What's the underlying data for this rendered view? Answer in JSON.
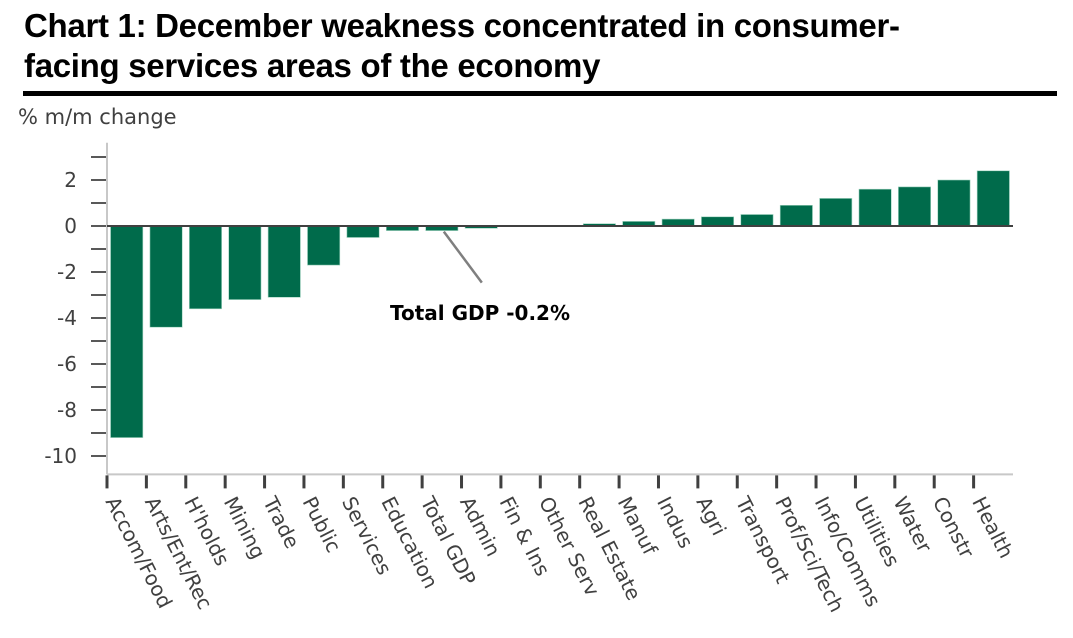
{
  "title": "Chart 1: December weakness concentrated in consumer-facing services areas of the economy",
  "title_lines": [
    "Chart 1: December weakness concentrated in consumer-",
    "facing services areas of the economy"
  ],
  "colors": {
    "bar": "#006B4B",
    "zero_line": "#404040",
    "axis": "#C8C8C8",
    "tick": "#595959",
    "text": "#404040"
  },
  "chart_data": {
    "type": "bar",
    "title": "Chart 1: December weakness concentrated in consumer-facing services areas of the economy",
    "xlabel": "",
    "ylabel": "% m/m change",
    "ylim": [
      -10.8,
      3.1
    ],
    "yticks": [
      2,
      0,
      -2,
      -4,
      -6,
      -8,
      -10
    ],
    "yticks_minor": [
      3,
      1,
      -1,
      -3,
      -5,
      -7,
      -9
    ],
    "grid": false,
    "legend": "none",
    "categories": [
      "Accom/Food",
      "Arts/Ent/Rec",
      "H'holds",
      "Mining",
      "Trade",
      "Public",
      "Services",
      "Education",
      "Total GDP",
      "Admin",
      "Fin & Ins",
      "Other Serv",
      "Real Estate",
      "Manuf",
      "Indus",
      "Agri",
      "Transport",
      "Prof/Sci/Tech",
      "Info/Comms",
      "Utilities",
      "Water",
      "Constr",
      "Health"
    ],
    "values": [
      -9.2,
      -4.4,
      -3.6,
      -3.2,
      -3.1,
      -1.7,
      -0.5,
      -0.2,
      -0.2,
      -0.1,
      0.0,
      0.0,
      0.1,
      0.2,
      0.3,
      0.4,
      0.5,
      0.9,
      1.2,
      1.6,
      1.7,
      2.0,
      2.4
    ],
    "annotations": [
      {
        "text": "Total GDP -0.2%",
        "points_to": "Total GDP"
      }
    ]
  }
}
